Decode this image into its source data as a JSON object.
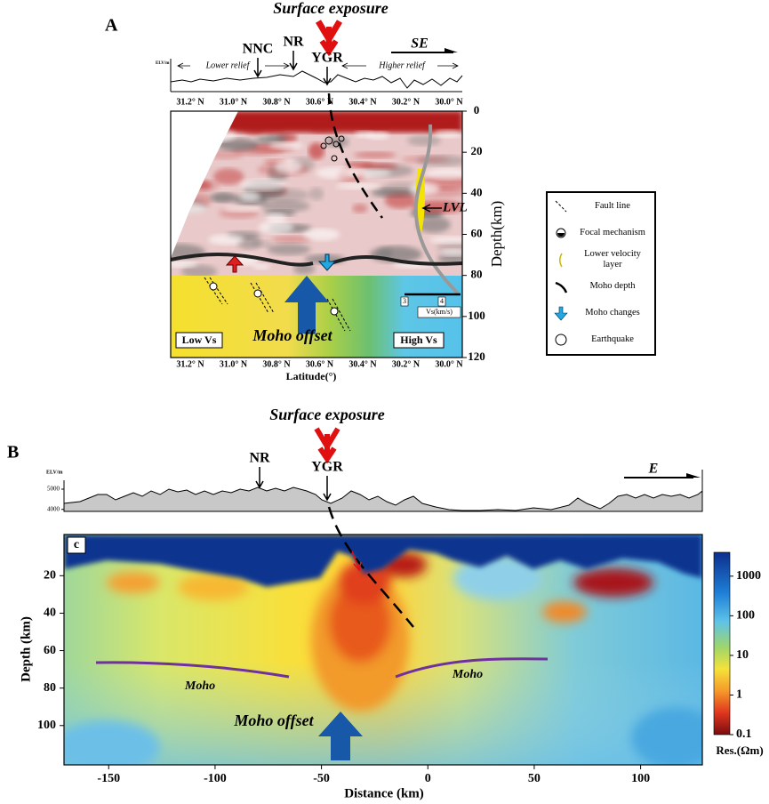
{
  "panel_a": {
    "label": "A",
    "surface_label": "Surface exposure",
    "direction": "SE",
    "elevation_unit": "ELV/m",
    "lower_relief": "Lower relief",
    "higher_relief": "Higher relief",
    "sites": [
      "NNC",
      "NR",
      "YGR"
    ],
    "latitude_ticks": [
      "31.2° N",
      "31.0° N",
      "30.8° N",
      "30.6° N",
      "30.4° N",
      "30.2° N",
      "30.0° N"
    ],
    "x_label": "Latitude(°)",
    "y_label": "Depth(km)",
    "ylim": [
      0,
      120
    ],
    "yticks": [
      0,
      20,
      40,
      60,
      80,
      100,
      120
    ],
    "lvl": "LVL",
    "low_vs": "Low Vs",
    "high_vs": "High Vs",
    "moho_offset": "Moho offset",
    "vs_label": "Vs(km/s)",
    "vs_ticks": [
      3,
      4
    ]
  },
  "legend": [
    "Fault line",
    "Focal mechanism",
    "Lower velocity layer",
    "Moho depth",
    "Moho changes",
    "Earthquake"
  ],
  "panel_b": {
    "label": "B",
    "surface_label": "Surface exposure",
    "direction": "E",
    "elevation_unit": "ELV/m",
    "elevation_lim": [
      3900,
      6100
    ],
    "elevation_ticks": [
      5000,
      4000
    ],
    "sites": [
      "NR",
      "YGR"
    ],
    "inset_label": "c",
    "xlim": [
      -171,
      129
    ],
    "xticks": [
      -150,
      -100,
      -50,
      0,
      50,
      100
    ],
    "x_label": "Distance (km)",
    "ylim": [
      -2,
      121
    ],
    "yticks": [
      20,
      40,
      60,
      80,
      100
    ],
    "y_label": "Depth (km)",
    "moho_labels": [
      "Moho",
      "Moho"
    ],
    "moho_offset": "Moho offset",
    "colorbar": {
      "label": "Res.(Ωm)",
      "log_scale": true,
      "lim": [
        0.1,
        4000
      ],
      "ticks": [
        1000,
        100,
        10,
        1,
        0.1
      ]
    }
  }
}
